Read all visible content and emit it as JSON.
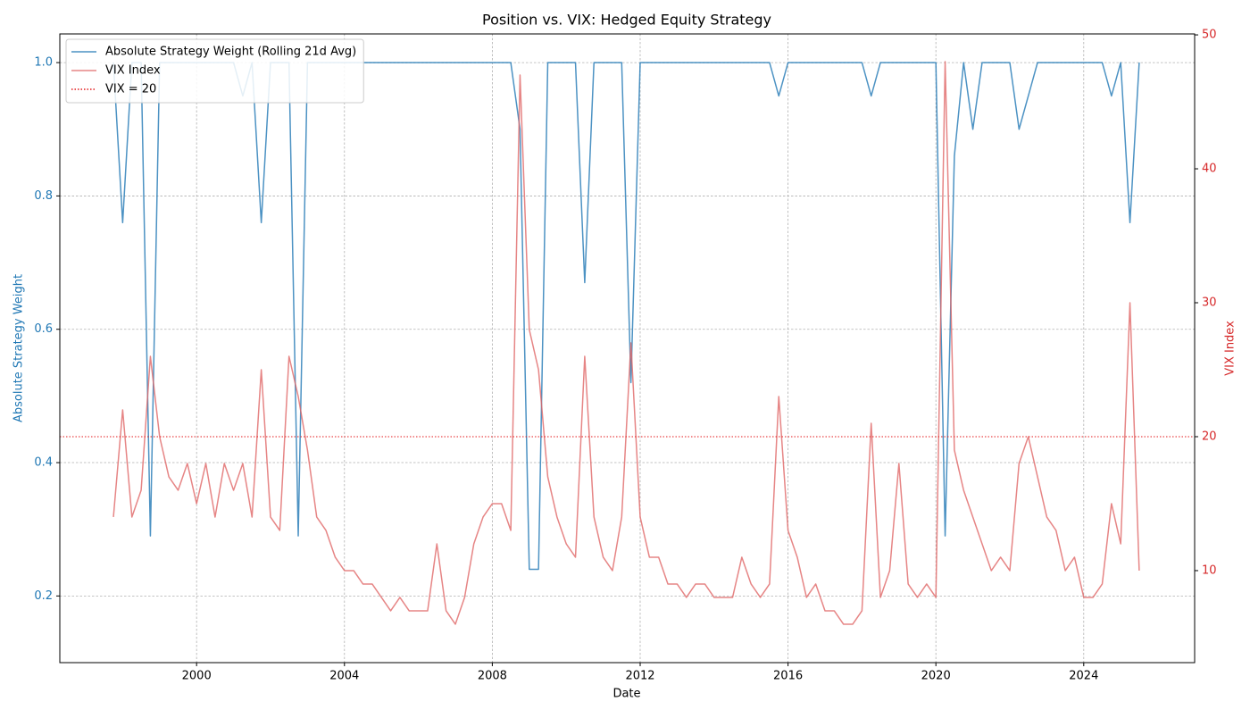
{
  "chart_data": {
    "type": "line",
    "title": "Position vs. VIX: Hedged Equity Strategy",
    "x_label": "Date",
    "y_label": "Absolute Strategy Weight",
    "y2_label": "VIX Index",
    "xlim": [
      1996.3,
      2027.0
    ],
    "ylim": [
      0.1,
      1.043
    ],
    "y2lim": [
      3.13,
      50.07
    ],
    "xticks": [
      2000,
      2004,
      2008,
      2012,
      2016,
      2020,
      2024
    ],
    "yticks": [
      0.2,
      0.4,
      0.6,
      0.8,
      {
        "value": 1.0,
        "label": "1.0"
      }
    ],
    "y2ticks": [
      10,
      20,
      30,
      40,
      50
    ],
    "grid": true,
    "legend": "upper-left",
    "y_color": "#1f77b4",
    "y2_color": "#d62728",
    "x": [
      1997.75,
      1998.0,
      1998.25,
      1998.5,
      1998.75,
      1999.0,
      1999.25,
      1999.5,
      1999.75,
      2000.0,
      2000.25,
      2000.5,
      2000.75,
      2001.0,
      2001.25,
      2001.5,
      2001.75,
      2002.0,
      2002.25,
      2002.5,
      2002.75,
      2003.0,
      2003.25,
      2003.5,
      2003.75,
      2004.0,
      2004.25,
      2004.5,
      2004.75,
      2005.0,
      2005.25,
      2005.5,
      2005.75,
      2006.0,
      2006.25,
      2006.5,
      2006.75,
      2007.0,
      2007.25,
      2007.5,
      2007.75,
      2008.0,
      2008.25,
      2008.5,
      2008.75,
      2009.0,
      2009.25,
      2009.5,
      2009.75,
      2010.0,
      2010.25,
      2010.5,
      2010.75,
      2011.0,
      2011.25,
      2011.5,
      2011.75,
      2012.0,
      2012.25,
      2012.5,
      2012.75,
      2013.0,
      2013.25,
      2013.5,
      2013.75,
      2014.0,
      2014.25,
      2014.5,
      2014.75,
      2015.0,
      2015.25,
      2015.5,
      2015.75,
      2016.0,
      2016.25,
      2016.5,
      2016.75,
      2017.0,
      2017.25,
      2017.5,
      2017.75,
      2018.0,
      2018.25,
      2018.5,
      2018.75,
      2019.0,
      2019.25,
      2019.5,
      2019.75,
      2020.0,
      2020.25,
      2020.5,
      2020.75,
      2021.0,
      2021.25,
      2021.5,
      2021.75,
      2022.0,
      2022.25,
      2022.5,
      2022.75,
      2023.0,
      2023.25,
      2023.5,
      2023.75,
      2024.0,
      2024.25,
      2024.5,
      2024.75,
      2025.0,
      2025.25,
      2025.5
    ],
    "series": [
      {
        "name": "Absolute Strategy Weight (Rolling 21d Avg)",
        "color": "#1f77b4",
        "axis": "y",
        "values": [
          1.0,
          0.76,
          1,
          1,
          0.29,
          1,
          1,
          1,
          1,
          1,
          1,
          1,
          1,
          1,
          0.95,
          1,
          0.76,
          1,
          1,
          1,
          0.29,
          1,
          1,
          1,
          1,
          1,
          1,
          1,
          1,
          1,
          1,
          1,
          1,
          1,
          1,
          1,
          1,
          1,
          1,
          1,
          1,
          1,
          1,
          1,
          0.9,
          0.24,
          0.24,
          1,
          1,
          1,
          1,
          0.67,
          1,
          1,
          1,
          1,
          0.52,
          1,
          1,
          1,
          1,
          1,
          1,
          1,
          1,
          1,
          1,
          1,
          1,
          1,
          1,
          1,
          0.95,
          1,
          1,
          1,
          1,
          1,
          1,
          1,
          1,
          1,
          0.95,
          1,
          1,
          1,
          1,
          1,
          1,
          1,
          0.29,
          0.86,
          1,
          0.9,
          1,
          1,
          1,
          1,
          0.9,
          0.95,
          1,
          1,
          1,
          1,
          1,
          1,
          1,
          1,
          0.95,
          1,
          0.76,
          1
        ]
      },
      {
        "name": "VIX Index",
        "color": "#e06666",
        "axis": "y2",
        "values": [
          14,
          22,
          14,
          16,
          26,
          20,
          17,
          16,
          18,
          15,
          18,
          14,
          18,
          16,
          18,
          14,
          25,
          14,
          13,
          26,
          23,
          19,
          14,
          13,
          11,
          10,
          10,
          9,
          9,
          8,
          7,
          8,
          7,
          7,
          7,
          12,
          7,
          6,
          8,
          12,
          14,
          15,
          15,
          13,
          47,
          28,
          25,
          17,
          14,
          12,
          11,
          26,
          14,
          11,
          10,
          14,
          27,
          14,
          11,
          11,
          9,
          9,
          8,
          9,
          9,
          8,
          8,
          8,
          11,
          9,
          8,
          9,
          23,
          13,
          11,
          8,
          9,
          7,
          7,
          6,
          6,
          7,
          21,
          8,
          10,
          18,
          9,
          8,
          9,
          8,
          48,
          19,
          16,
          14,
          12,
          10,
          11,
          10,
          18,
          20,
          17,
          14,
          13,
          10,
          11,
          8,
          8,
          9,
          15,
          12,
          30,
          10
        ]
      }
    ],
    "hlines": [
      {
        "name": "VIX = 20",
        "value": 20,
        "axis": "y2",
        "color": "#e31a1c"
      }
    ]
  }
}
